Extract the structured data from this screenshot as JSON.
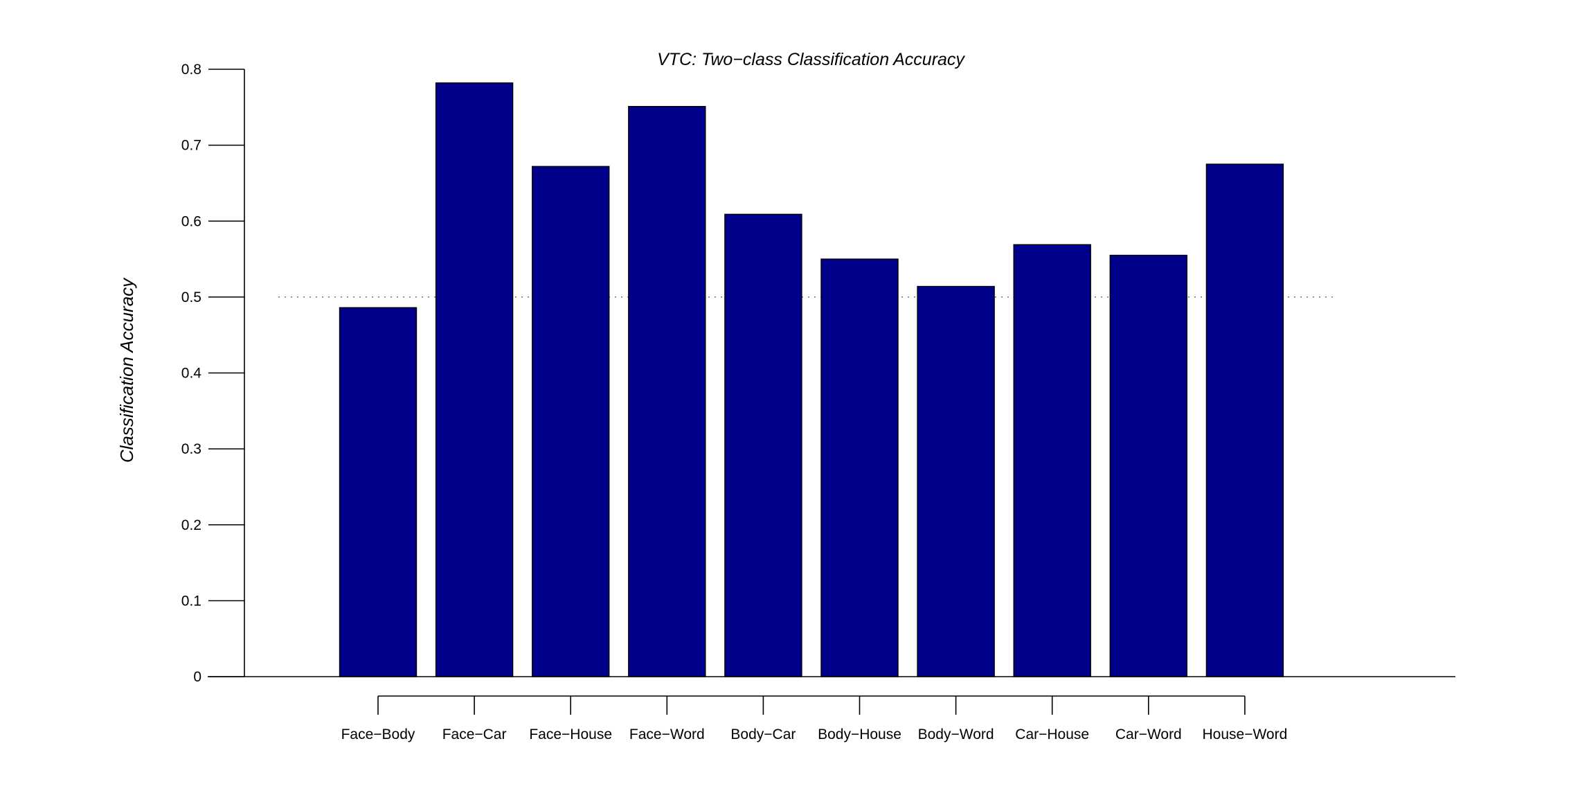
{
  "chart_data": {
    "type": "bar",
    "title": "VTC: Two−class Classification Accuracy",
    "xlabel": "",
    "ylabel": "Classification Accuracy",
    "categories": [
      "Face−Body",
      "Face−Car",
      "Face−House",
      "Face−Word",
      "Body−Car",
      "Body−House",
      "Body−Word",
      "Car−House",
      "Car−Word",
      "House−Word"
    ],
    "values": [
      0.486,
      0.782,
      0.672,
      0.751,
      0.609,
      0.55,
      0.514,
      0.569,
      0.555,
      0.675
    ],
    "ylim": [
      0,
      0.8
    ],
    "yticks": [
      0,
      0.1,
      0.2,
      0.3,
      0.4,
      0.5,
      0.6,
      0.7,
      0.8
    ],
    "ytick_labels": [
      "0",
      "0.1",
      "0.2",
      "0.3",
      "0.4",
      "0.5",
      "0.6",
      "0.7",
      "0.8"
    ],
    "reference_line": 0.5,
    "grid": false,
    "legend": "none",
    "bar_color": "#00008B"
  }
}
